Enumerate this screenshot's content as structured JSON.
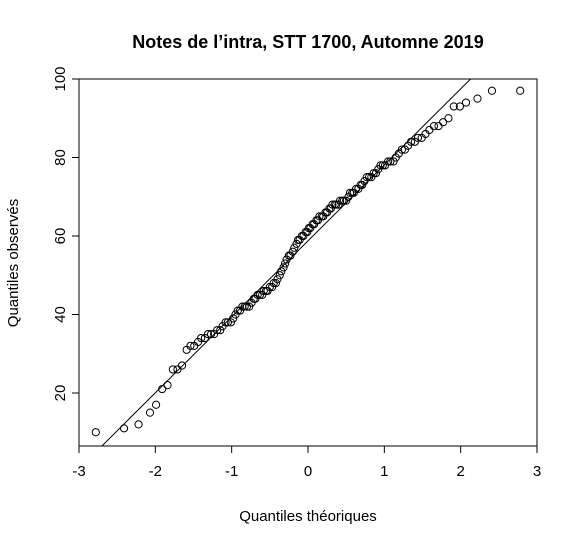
{
  "chart_data": {
    "type": "scatter",
    "subtype": "qq-plot",
    "title": "Notes de l’intra, STT 1700, Automne 2019",
    "xlabel": "Quantiles théoriques",
    "ylabel": "Quantiles observés",
    "xlim": [
      -3,
      3
    ],
    "ylim": [
      6.5,
      100
    ],
    "xticks": [
      -3,
      -2,
      -1,
      0,
      1,
      2,
      3
    ],
    "yticks": [
      20,
      40,
      60,
      80,
      100
    ],
    "xtick_labels": [
      "-3",
      "-2",
      "-1",
      "0",
      "1",
      "2",
      "3"
    ],
    "ytick_labels": [
      "20",
      "40",
      "60",
      "80",
      "100"
    ],
    "grid": false,
    "legend": "none",
    "marker": "open-circle",
    "reference_line": {
      "x": [
        -2.7,
        2.13
      ],
      "y": [
        6.5,
        100
      ]
    },
    "series": [
      {
        "points": [
          [
            -2.78,
            10
          ],
          [
            -2.41,
            11
          ],
          [
            -2.22,
            12
          ],
          [
            -2.07,
            15
          ],
          [
            -1.99,
            17
          ],
          [
            -1.91,
            21
          ],
          [
            -1.84,
            22
          ],
          [
            -1.77,
            26
          ],
          [
            -1.71,
            26
          ],
          [
            -1.65,
            27
          ],
          [
            -1.59,
            31
          ],
          [
            -1.54,
            32
          ],
          [
            -1.49,
            32
          ],
          [
            -1.44,
            33
          ],
          [
            -1.4,
            34
          ],
          [
            -1.35,
            34
          ],
          [
            -1.31,
            35
          ],
          [
            -1.27,
            35
          ],
          [
            -1.23,
            35
          ],
          [
            -1.19,
            36
          ],
          [
            -1.15,
            36
          ],
          [
            -1.12,
            37
          ],
          [
            -1.08,
            38
          ],
          [
            -1.05,
            38
          ],
          [
            -1.01,
            38
          ],
          [
            -0.98,
            39
          ],
          [
            -0.95,
            40
          ],
          [
            -0.92,
            41
          ],
          [
            -0.89,
            41
          ],
          [
            -0.86,
            42
          ],
          [
            -0.83,
            42
          ],
          [
            -0.8,
            42
          ],
          [
            -0.77,
            42
          ],
          [
            -0.74,
            43
          ],
          [
            -0.71,
            44
          ],
          [
            -0.69,
            44
          ],
          [
            -0.66,
            45
          ],
          [
            -0.63,
            45
          ],
          [
            -0.6,
            45
          ],
          [
            -0.58,
            46
          ],
          [
            -0.55,
            46
          ],
          [
            -0.53,
            46
          ],
          [
            -0.5,
            47
          ],
          [
            -0.47,
            47
          ],
          [
            -0.45,
            48
          ],
          [
            -0.42,
            48
          ],
          [
            -0.4,
            49
          ],
          [
            -0.37,
            50
          ],
          [
            -0.35,
            51
          ],
          [
            -0.32,
            52
          ],
          [
            -0.3,
            53
          ],
          [
            -0.28,
            54
          ],
          [
            -0.25,
            55
          ],
          [
            -0.23,
            55
          ],
          [
            -0.2,
            56
          ],
          [
            -0.18,
            57
          ],
          [
            -0.15,
            58
          ],
          [
            -0.13,
            59
          ],
          [
            -0.11,
            59
          ],
          [
            -0.08,
            60
          ],
          [
            -0.06,
            60
          ],
          [
            -0.03,
            61
          ],
          [
            -0.01,
            61
          ],
          [
            0.01,
            62
          ],
          [
            0.03,
            62
          ],
          [
            0.06,
            63
          ],
          [
            0.08,
            63
          ],
          [
            0.11,
            64
          ],
          [
            0.13,
            64
          ],
          [
            0.15,
            65
          ],
          [
            0.18,
            65
          ],
          [
            0.2,
            65
          ],
          [
            0.23,
            66
          ],
          [
            0.25,
            66
          ],
          [
            0.28,
            67
          ],
          [
            0.3,
            67
          ],
          [
            0.32,
            68
          ],
          [
            0.35,
            68
          ],
          [
            0.37,
            68
          ],
          [
            0.4,
            68
          ],
          [
            0.42,
            69
          ],
          [
            0.45,
            69
          ],
          [
            0.47,
            69
          ],
          [
            0.5,
            69
          ],
          [
            0.53,
            70
          ],
          [
            0.55,
            71
          ],
          [
            0.58,
            71
          ],
          [
            0.6,
            71
          ],
          [
            0.63,
            72
          ],
          [
            0.66,
            72
          ],
          [
            0.69,
            73
          ],
          [
            0.71,
            73
          ],
          [
            0.74,
            74
          ],
          [
            0.77,
            75
          ],
          [
            0.8,
            75
          ],
          [
            0.83,
            75
          ],
          [
            0.86,
            76
          ],
          [
            0.89,
            76
          ],
          [
            0.92,
            77
          ],
          [
            0.95,
            78
          ],
          [
            0.98,
            78
          ],
          [
            1.01,
            78
          ],
          [
            1.05,
            79
          ],
          [
            1.08,
            79
          ],
          [
            1.12,
            79
          ],
          [
            1.15,
            80
          ],
          [
            1.19,
            81
          ],
          [
            1.23,
            82
          ],
          [
            1.27,
            82
          ],
          [
            1.31,
            83
          ],
          [
            1.35,
            84
          ],
          [
            1.4,
            84
          ],
          [
            1.44,
            85
          ],
          [
            1.49,
            85
          ],
          [
            1.54,
            86
          ],
          [
            1.59,
            87
          ],
          [
            1.65,
            88
          ],
          [
            1.71,
            88
          ],
          [
            1.77,
            89
          ],
          [
            1.84,
            90
          ],
          [
            1.91,
            93
          ],
          [
            1.99,
            93
          ],
          [
            2.07,
            94
          ],
          [
            2.22,
            95
          ],
          [
            2.41,
            97
          ],
          [
            2.78,
            97
          ]
        ]
      }
    ]
  }
}
